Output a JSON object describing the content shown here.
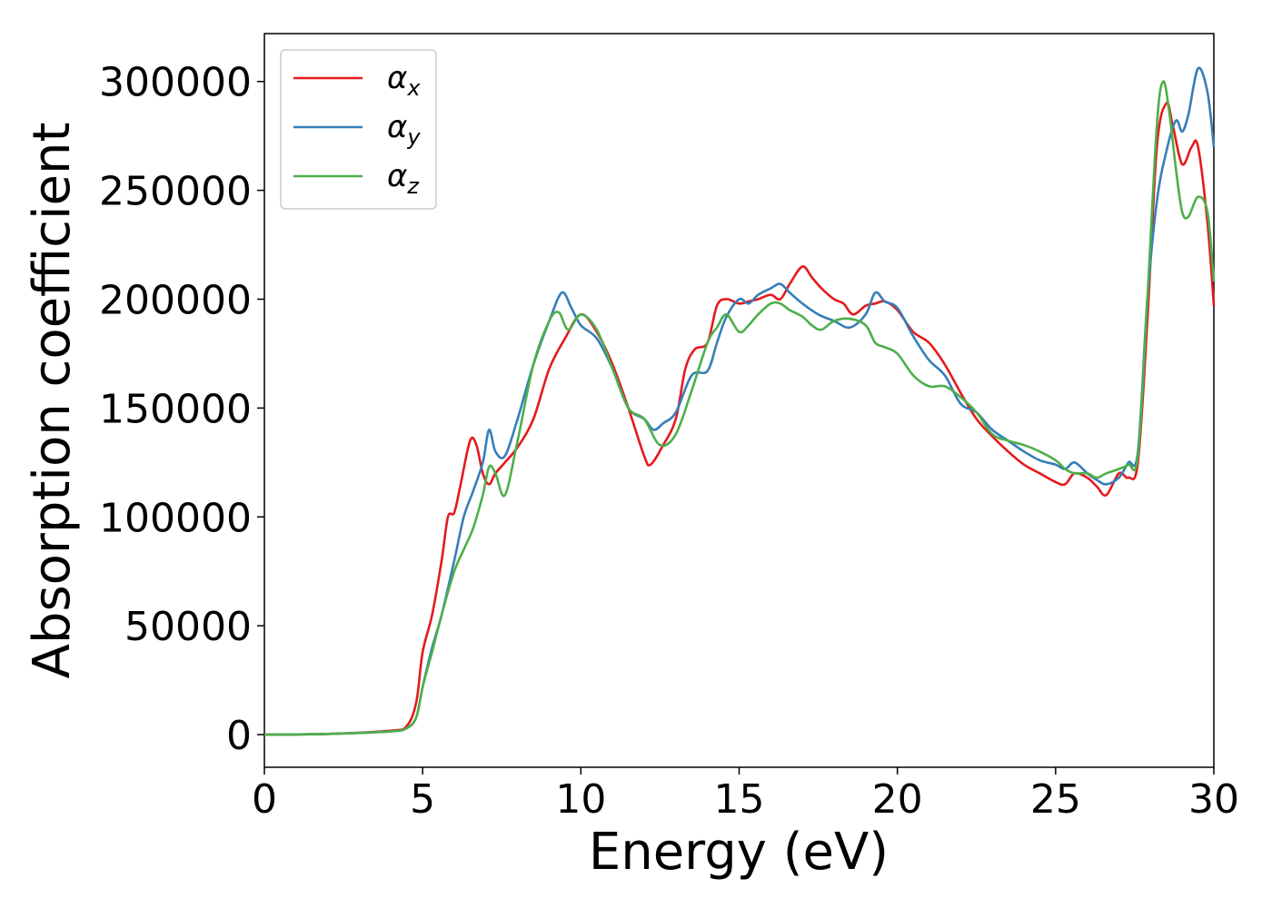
{
  "chart_data": {
    "type": "line",
    "xlabel": "Energy (eV)",
    "ylabel": "Absorption coefficient",
    "xlim": [
      0,
      30
    ],
    "ylim": [
      -15000,
      322000
    ],
    "x_ticks": [
      "0",
      "5",
      "10",
      "15",
      "20",
      "25",
      "30"
    ],
    "y_ticks": [
      "0",
      "50000",
      "100000",
      "150000",
      "200000",
      "250000",
      "300000"
    ],
    "legend_position": "top-left",
    "grid": false,
    "series": [
      {
        "name": "α_x",
        "symbol": "α",
        "subscript": "x",
        "color": "#e41a1c",
        "x": [
          0,
          2,
          4,
          4.5,
          4.8,
          5,
          5.3,
          5.6,
          5.8,
          6,
          6.2,
          6.5,
          6.7,
          6.9,
          7.1,
          7.3,
          7.6,
          8,
          8.5,
          9,
          9.5,
          10,
          10.5,
          11,
          11.5,
          12,
          12.2,
          12.6,
          13,
          13.3,
          13.6,
          14,
          14.3,
          14.6,
          15,
          15.3,
          15.6,
          16,
          16.3,
          16.6,
          17,
          17.3,
          17.6,
          18,
          18.3,
          18.6,
          19,
          19.3,
          19.6,
          20,
          20.5,
          21,
          21.5,
          22,
          22.5,
          23,
          23.5,
          24,
          24.5,
          25,
          25.3,
          25.6,
          26,
          26.3,
          26.6,
          27,
          27.3,
          27.6,
          27.9,
          28.2,
          28.5,
          28.7,
          29,
          29.3,
          29.5,
          29.8,
          30
        ],
        "y": [
          0,
          300,
          1800,
          4000,
          15000,
          38000,
          55000,
          80000,
          100000,
          102000,
          115000,
          135000,
          133000,
          120000,
          115000,
          120000,
          125000,
          132000,
          145000,
          168000,
          182000,
          193000,
          185000,
          170000,
          150000,
          128000,
          124000,
          133000,
          145000,
          168000,
          177000,
          180000,
          197000,
          200000,
          198000,
          199000,
          200000,
          202000,
          200000,
          207000,
          215000,
          210000,
          205000,
          200000,
          198000,
          193000,
          197000,
          198000,
          199000,
          195000,
          185000,
          180000,
          170000,
          157000,
          145000,
          137000,
          130000,
          124000,
          120000,
          116000,
          115000,
          120000,
          118000,
          114000,
          110000,
          120000,
          118000,
          125000,
          190000,
          270000,
          290000,
          280000,
          262000,
          270000,
          270000,
          235000,
          197000
        ]
      },
      {
        "name": "α_y",
        "symbol": "α",
        "subscript": "y",
        "color": "#377eb8",
        "x": [
          0,
          2,
          4,
          4.5,
          4.8,
          5,
          5.3,
          5.6,
          6,
          6.3,
          6.6,
          6.9,
          7.1,
          7.3,
          7.6,
          8,
          8.5,
          9,
          9.4,
          9.7,
          10,
          10.5,
          11,
          11.5,
          12,
          12.3,
          12.6,
          13,
          13.5,
          14,
          14.3,
          14.6,
          15,
          15.3,
          15.6,
          16,
          16.3,
          16.6,
          17,
          17.5,
          18,
          18.5,
          19,
          19.3,
          19.6,
          20,
          20.5,
          21,
          21.5,
          22,
          22.5,
          23,
          23.5,
          24,
          24.5,
          25,
          25.3,
          25.6,
          26,
          26.3,
          26.6,
          27,
          27.3,
          27.6,
          27.9,
          28.2,
          28.5,
          28.8,
          29,
          29.2,
          29.5,
          29.8,
          30
        ],
        "y": [
          0,
          300,
          1500,
          3000,
          8000,
          22000,
          40000,
          55000,
          80000,
          100000,
          112000,
          125000,
          140000,
          130000,
          128000,
          145000,
          170000,
          190000,
          203000,
          196000,
          188000,
          182000,
          168000,
          150000,
          145000,
          140000,
          143000,
          148000,
          165000,
          167000,
          180000,
          192000,
          200000,
          198000,
          202000,
          205000,
          207000,
          203000,
          198000,
          193000,
          190000,
          187000,
          193000,
          203000,
          199000,
          196000,
          183000,
          172000,
          165000,
          152000,
          148000,
          140000,
          135000,
          130000,
          126000,
          124000,
          122000,
          125000,
          120000,
          117000,
          115000,
          118000,
          125000,
          130000,
          200000,
          245000,
          268000,
          282000,
          277000,
          285000,
          306000,
          295000,
          270000
        ]
      },
      {
        "name": "α_z",
        "symbol": "α",
        "subscript": "z",
        "color": "#4daf4a",
        "x": [
          0,
          2,
          4,
          4.5,
          4.8,
          5,
          5.3,
          5.6,
          6,
          6.3,
          6.6,
          6.9,
          7.1,
          7.3,
          7.6,
          8,
          8.5,
          9,
          9.3,
          9.6,
          10,
          10.5,
          11,
          11.5,
          12,
          12.5,
          13,
          13.5,
          14,
          14.3,
          14.6,
          15,
          15.3,
          15.6,
          16,
          16.3,
          16.6,
          17,
          17.3,
          17.6,
          18,
          18.5,
          19,
          19.3,
          19.6,
          20,
          20.5,
          21,
          21.5,
          22,
          22.5,
          23,
          23.5,
          24,
          24.5,
          25,
          25.3,
          25.6,
          26,
          26.3,
          26.6,
          27,
          27.3,
          27.6,
          27.9,
          28.2,
          28.4,
          28.6,
          28.8,
          29,
          29.2,
          29.5,
          29.8,
          30
        ],
        "y": [
          0,
          300,
          1500,
          3000,
          8000,
          22000,
          38000,
          55000,
          75000,
          85000,
          95000,
          110000,
          123000,
          120000,
          110000,
          135000,
          170000,
          190000,
          194000,
          186000,
          193000,
          186000,
          168000,
          150000,
          145000,
          133000,
          138000,
          158000,
          180000,
          187000,
          193000,
          185000,
          188000,
          193000,
          198000,
          198000,
          195000,
          192000,
          188000,
          186000,
          190000,
          191000,
          188000,
          180000,
          178000,
          175000,
          165000,
          160000,
          160000,
          155000,
          148000,
          138000,
          135000,
          133000,
          130000,
          126000,
          122000,
          120000,
          120000,
          118000,
          120000,
          122000,
          124000,
          128000,
          200000,
          280000,
          300000,
          285000,
          260000,
          240000,
          238000,
          247000,
          240000,
          208000
        ]
      }
    ]
  }
}
